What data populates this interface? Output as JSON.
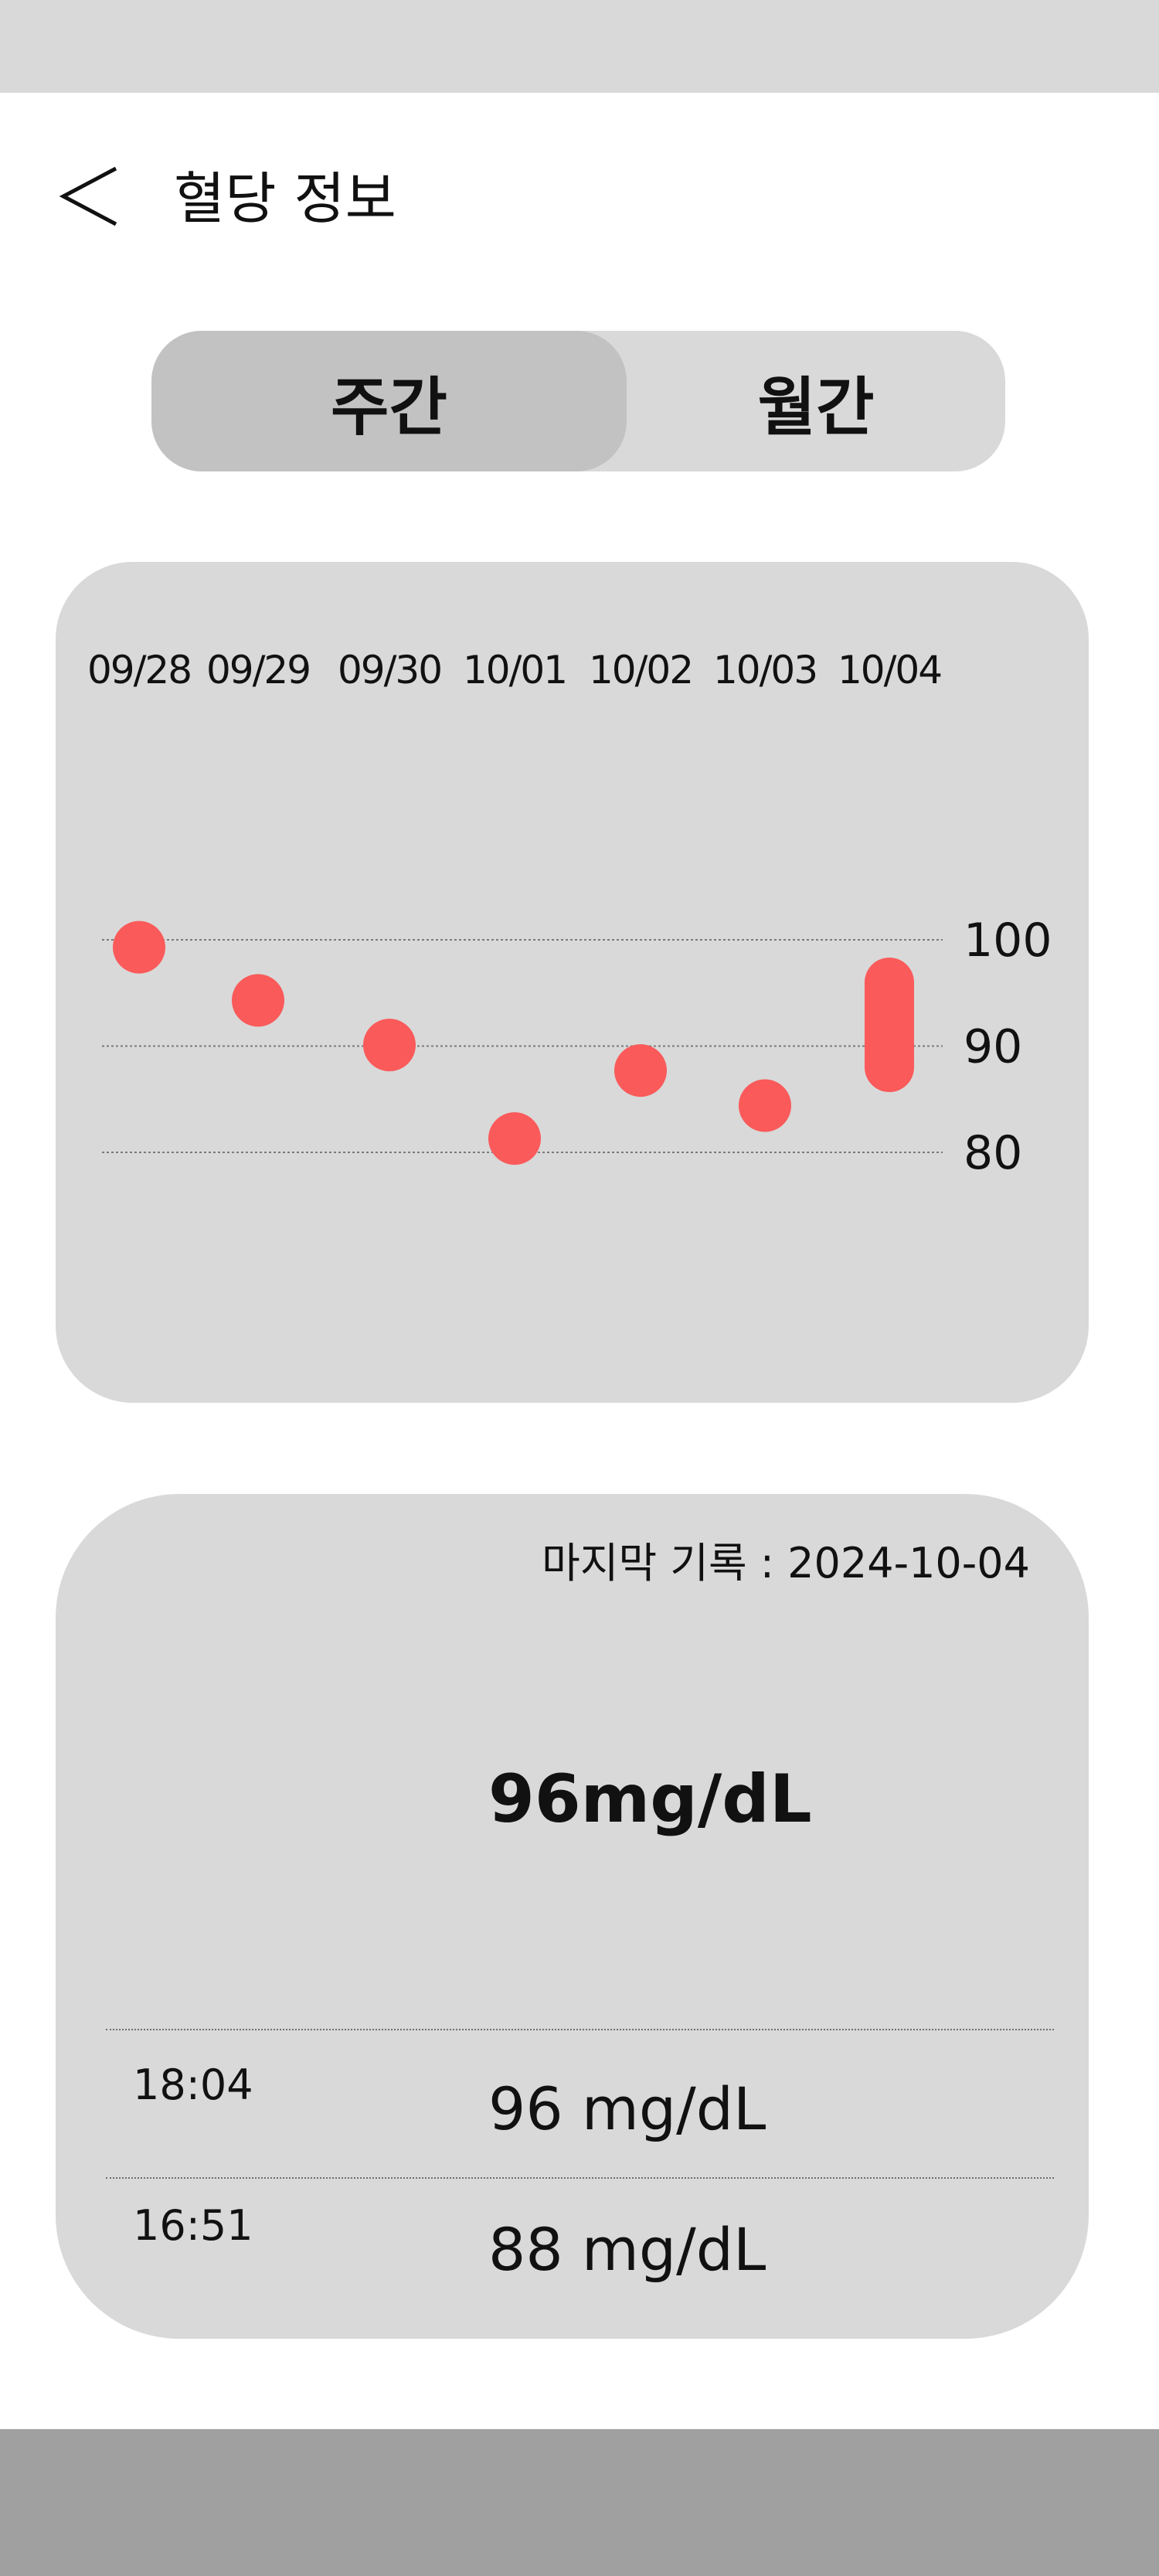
{
  "header": {
    "title": "혈당 정보"
  },
  "tabs": [
    {
      "label": "주간",
      "selected": true
    },
    {
      "label": "월간",
      "selected": false
    }
  ],
  "chart_data": {
    "type": "scatter",
    "categories": [
      "09/28",
      "09/29",
      "09/30",
      "10/01",
      "10/02",
      "10/03",
      "10/04"
    ],
    "values": [
      99.3,
      94.3,
      90.1,
      81.3,
      87.7,
      84.4,
      null
    ],
    "range_points": [
      {
        "category": "10/04",
        "min": 88,
        "max": 96
      }
    ],
    "ylim": [
      80,
      100
    ],
    "yticks": [
      "100",
      "90",
      "80"
    ],
    "grid": true,
    "color": "#fa5a5a"
  },
  "summary": {
    "last_record_label": "마지막 기록 : 2024-10-04",
    "latest_value": "96mg/dL"
  },
  "entries": [
    {
      "time": "18:04",
      "value": "96 mg/dL"
    },
    {
      "time": "16:51",
      "value": "88 mg/dL"
    }
  ]
}
